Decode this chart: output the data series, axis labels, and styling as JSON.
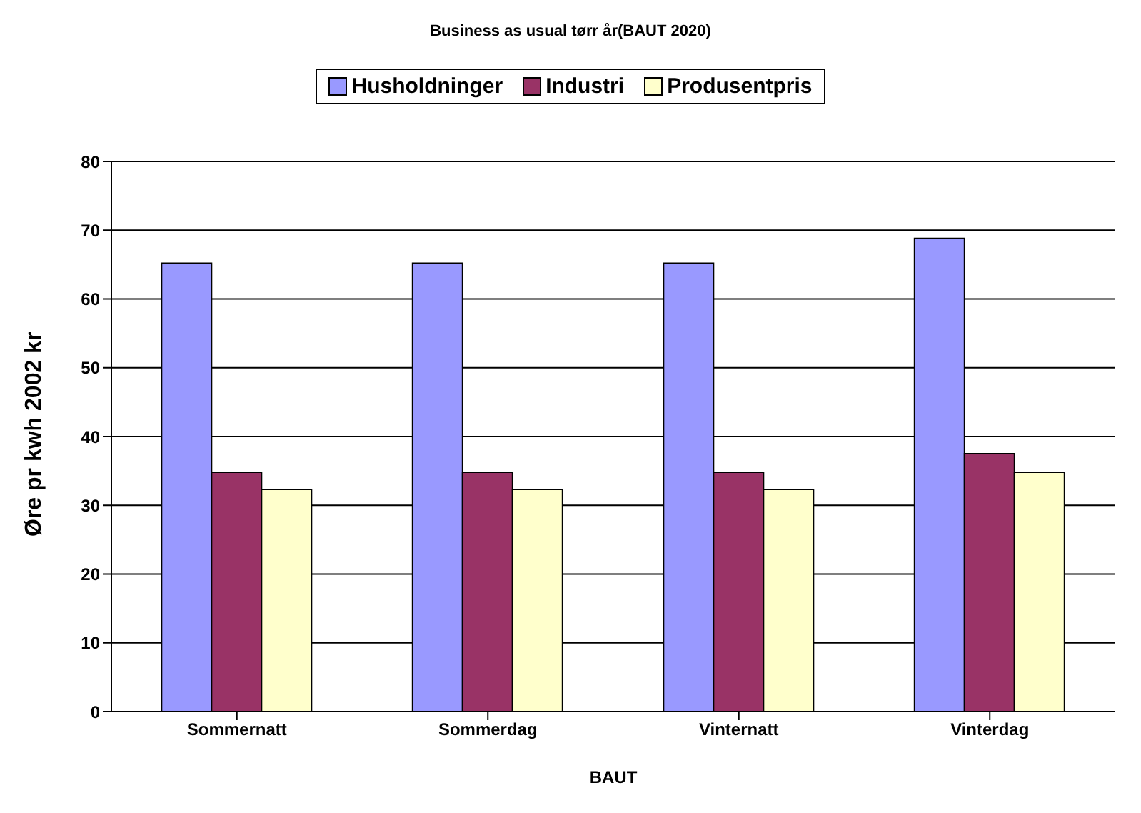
{
  "chart_data": {
    "type": "bar",
    "title": "Business as usual tørr år(BAUT 2020)",
    "xlabel": "BAUT",
    "ylabel": "Øre pr kwh 2002 kr",
    "categories": [
      "Sommernatt",
      "Sommerdag",
      "Vinternatt",
      "Vinterdag"
    ],
    "series": [
      {
        "name": "Husholdninger",
        "color": "#9999ff",
        "values": [
          65.2,
          65.2,
          65.2,
          68.8
        ]
      },
      {
        "name": "Industri",
        "color": "#993366",
        "values": [
          34.8,
          34.8,
          34.8,
          37.5
        ]
      },
      {
        "name": "Produsentpris",
        "color": "#ffffcc",
        "values": [
          32.3,
          32.3,
          32.3,
          34.8
        ]
      }
    ],
    "ylim": [
      0,
      80
    ],
    "yticks": [
      0,
      10,
      20,
      30,
      40,
      50,
      60,
      70,
      80
    ],
    "grid": "y",
    "legend": "top"
  }
}
